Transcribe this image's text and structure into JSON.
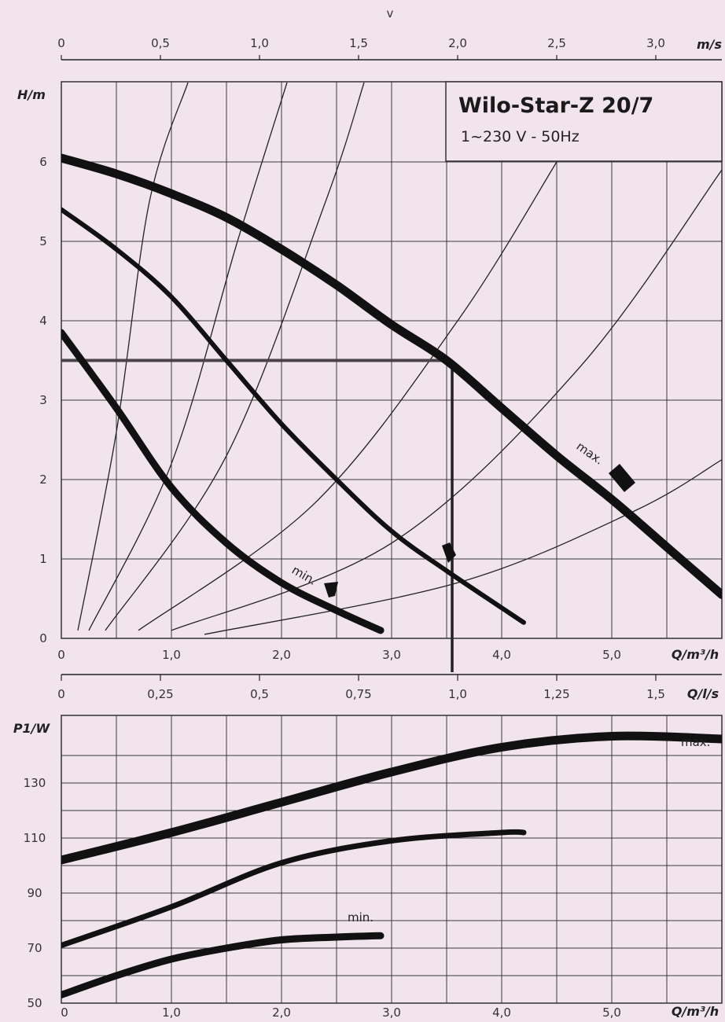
{
  "chart_data": [
    {
      "type": "line",
      "title": "Wilo-Star-Z 20/7",
      "subtitle": "1~230 V - 50Hz",
      "ylabel": "H/m",
      "xlabel": "Q/m³/h",
      "top_axis": {
        "label": "v",
        "unit": "m/s",
        "ticks": [
          "0",
          "0,5",
          "1,0",
          "1,5",
          "2,0",
          "2,5",
          "3,0"
        ],
        "q_at_tick": [
          0,
          0.9,
          1.8,
          2.7,
          3.6,
          4.5,
          5.4
        ]
      },
      "x_ticks": [
        "0",
        "1,0",
        "2,0",
        "3,0",
        "4,0",
        "5,0"
      ],
      "y_ticks": [
        "0",
        "1",
        "2",
        "3",
        "4",
        "5",
        "6"
      ],
      "xlim": [
        0,
        6.0
      ],
      "ylim": [
        0,
        7.0
      ],
      "grid": true,
      "series": [
        {
          "name": "max.",
          "x": [
            0,
            0.5,
            1.0,
            1.5,
            2.0,
            2.5,
            3.0,
            3.5,
            4.0,
            4.5,
            5.0,
            5.5,
            6.0
          ],
          "y": [
            6.05,
            5.85,
            5.6,
            5.3,
            4.9,
            4.45,
            3.95,
            3.5,
            2.9,
            2.3,
            1.75,
            1.15,
            0.55
          ]
        },
        {
          "name": "",
          "x": [
            0,
            0.5,
            1.0,
            1.5,
            2.0,
            2.5,
            3.0,
            3.5,
            4.2
          ],
          "y": [
            5.4,
            4.9,
            4.3,
            3.5,
            2.7,
            2.0,
            1.35,
            0.85,
            0.2
          ]
        },
        {
          "name": "min.",
          "x": [
            0,
            0.5,
            1.0,
            1.5,
            2.0,
            2.5,
            2.9
          ],
          "y": [
            3.85,
            2.9,
            1.9,
            1.2,
            0.7,
            0.35,
            0.1
          ]
        }
      ],
      "system_curves": [
        {
          "x": [
            0.15,
            0.5,
            0.8,
            1.15
          ],
          "y": [
            0.1,
            2.6,
            5.5,
            7.0
          ]
        },
        {
          "x": [
            0.25,
            1.0,
            1.6,
            2.05
          ],
          "y": [
            0.1,
            2.2,
            5.0,
            7.0
          ]
        },
        {
          "x": [
            0.4,
            1.5,
            2.4,
            2.75
          ],
          "y": [
            0.1,
            2.3,
            5.5,
            7.0
          ]
        },
        {
          "x": [
            0.7,
            2.3,
            3.6,
            4.5
          ],
          "y": [
            0.1,
            1.7,
            4.0,
            6.0
          ]
        },
        {
          "x": [
            1.0,
            3.0,
            4.7,
            6.0
          ],
          "y": [
            0.1,
            1.2,
            3.4,
            5.9
          ]
        },
        {
          "x": [
            1.3,
            3.6,
            5.2,
            6.0
          ],
          "y": [
            0.05,
            0.7,
            1.6,
            2.25
          ]
        }
      ],
      "duty_point": {
        "q": 3.55,
        "h": 3.5
      },
      "annotations": [
        "max.",
        "min."
      ]
    },
    {
      "type": "line",
      "ylabel": "P1/W",
      "xlabel": "Q/m³/h",
      "top_axis": {
        "unit": "Q/l/s",
        "ticks": [
          "0",
          "0,25",
          "0,5",
          "0,75",
          "1,0",
          "1,25",
          "1,5"
        ],
        "q_at_tick": [
          0,
          0.9,
          1.8,
          2.7,
          3.6,
          4.5,
          5.4
        ]
      },
      "x_ticks": [
        "0",
        "1,0",
        "2,0",
        "3,0",
        "4,0",
        "5,0"
      ],
      "y_ticks": [
        "50",
        "70",
        "90",
        "110",
        "130"
      ],
      "xlim": [
        0,
        6.0
      ],
      "ylim": [
        50,
        150
      ],
      "grid": true,
      "series": [
        {
          "name": "max.",
          "x": [
            0,
            1,
            2,
            3,
            4,
            5,
            6
          ],
          "y": [
            102,
            112,
            123,
            134,
            143,
            147,
            146
          ]
        },
        {
          "name": "",
          "x": [
            0,
            1,
            2,
            3,
            4,
            4.2
          ],
          "y": [
            71,
            85,
            101,
            109,
            112,
            112
          ]
        },
        {
          "name": "min.",
          "x": [
            0,
            0.5,
            1.0,
            1.5,
            2.0,
            2.5,
            2.9
          ],
          "y": [
            53,
            60,
            66,
            70,
            73,
            74,
            74.5
          ]
        }
      ],
      "annotations": [
        "max.",
        "min."
      ]
    }
  ]
}
